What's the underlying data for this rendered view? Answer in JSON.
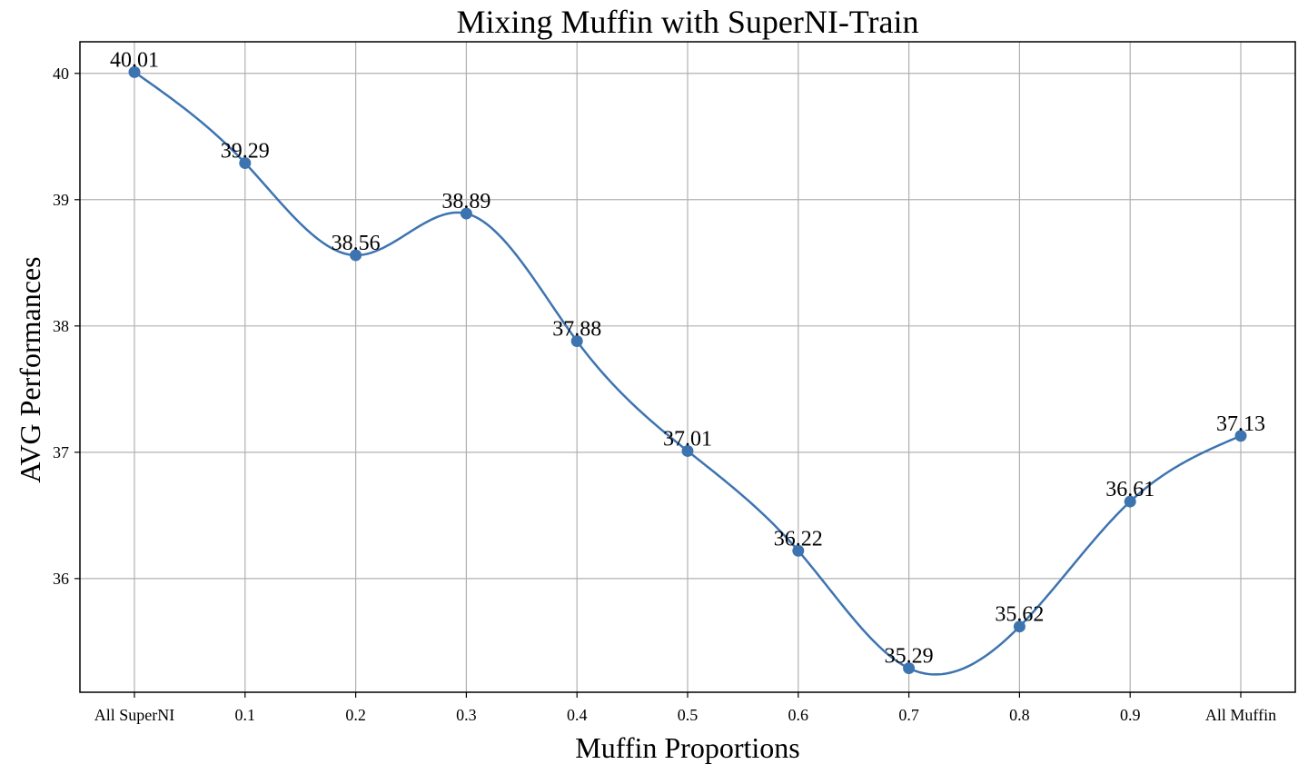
{
  "chart_data": {
    "type": "line",
    "title": "Mixing Muffin with SuperNI-Train",
    "xlabel": "Muffin Proportions",
    "ylabel": "AVG Performances",
    "categories": [
      "All SuperNI",
      "0.1",
      "0.2",
      "0.3",
      "0.4",
      "0.5",
      "0.6",
      "0.7",
      "0.8",
      "0.9",
      "All Muffin"
    ],
    "values": [
      40.01,
      39.29,
      38.56,
      38.89,
      37.88,
      37.01,
      36.22,
      35.29,
      35.62,
      36.61,
      37.13
    ],
    "data_labels": [
      "40.01",
      "39.29",
      "38.56",
      "38.89",
      "37.88",
      "37.01",
      "36.22",
      "35.29",
      "35.62",
      "36.61",
      "37.13"
    ],
    "ylim": [
      35.1,
      40.25
    ],
    "yticks": [
      36,
      37,
      38,
      39,
      40
    ],
    "ytick_labels": [
      "36",
      "37",
      "38",
      "39",
      "40"
    ],
    "grid": true,
    "legend": "none",
    "color": "#3d74b0"
  }
}
